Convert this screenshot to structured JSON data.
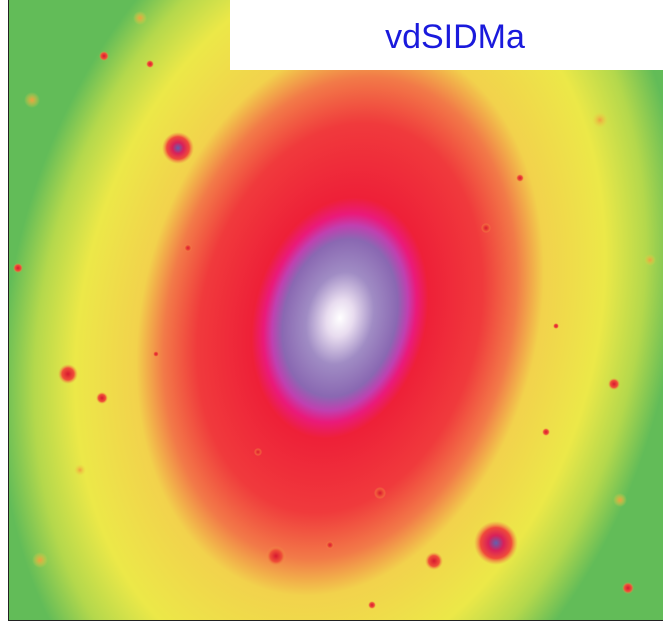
{
  "label": "vdSIDMa"
}
